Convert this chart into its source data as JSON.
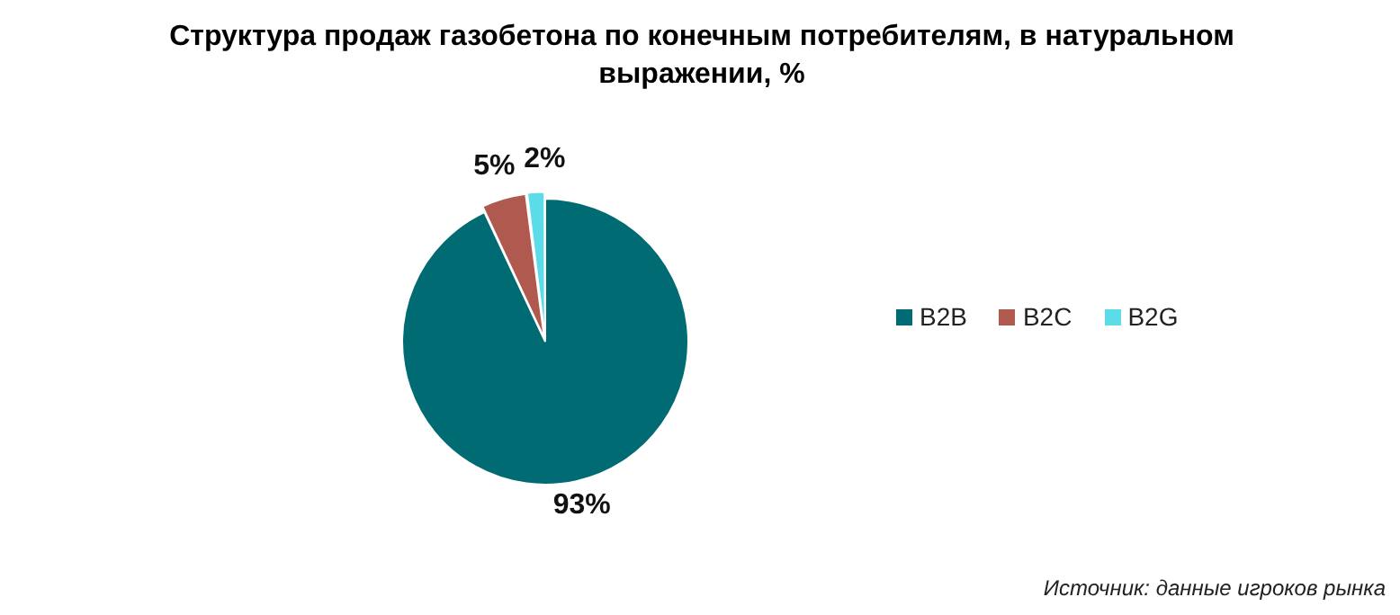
{
  "chart_data": {
    "type": "pie",
    "title": "Структура продаж газобетона по конечным потребителям, в натуральном выражении, %",
    "categories": [
      "B2B",
      "B2C",
      "B2G"
    ],
    "values": [
      93,
      5,
      2
    ],
    "colors": [
      "#006b73",
      "#b05a4f",
      "#5cdbe8"
    ],
    "value_labels": [
      "93%",
      "5%",
      "2%"
    ],
    "legend": "right",
    "annotations": [
      "Источник: данные игроков рынка"
    ]
  }
}
